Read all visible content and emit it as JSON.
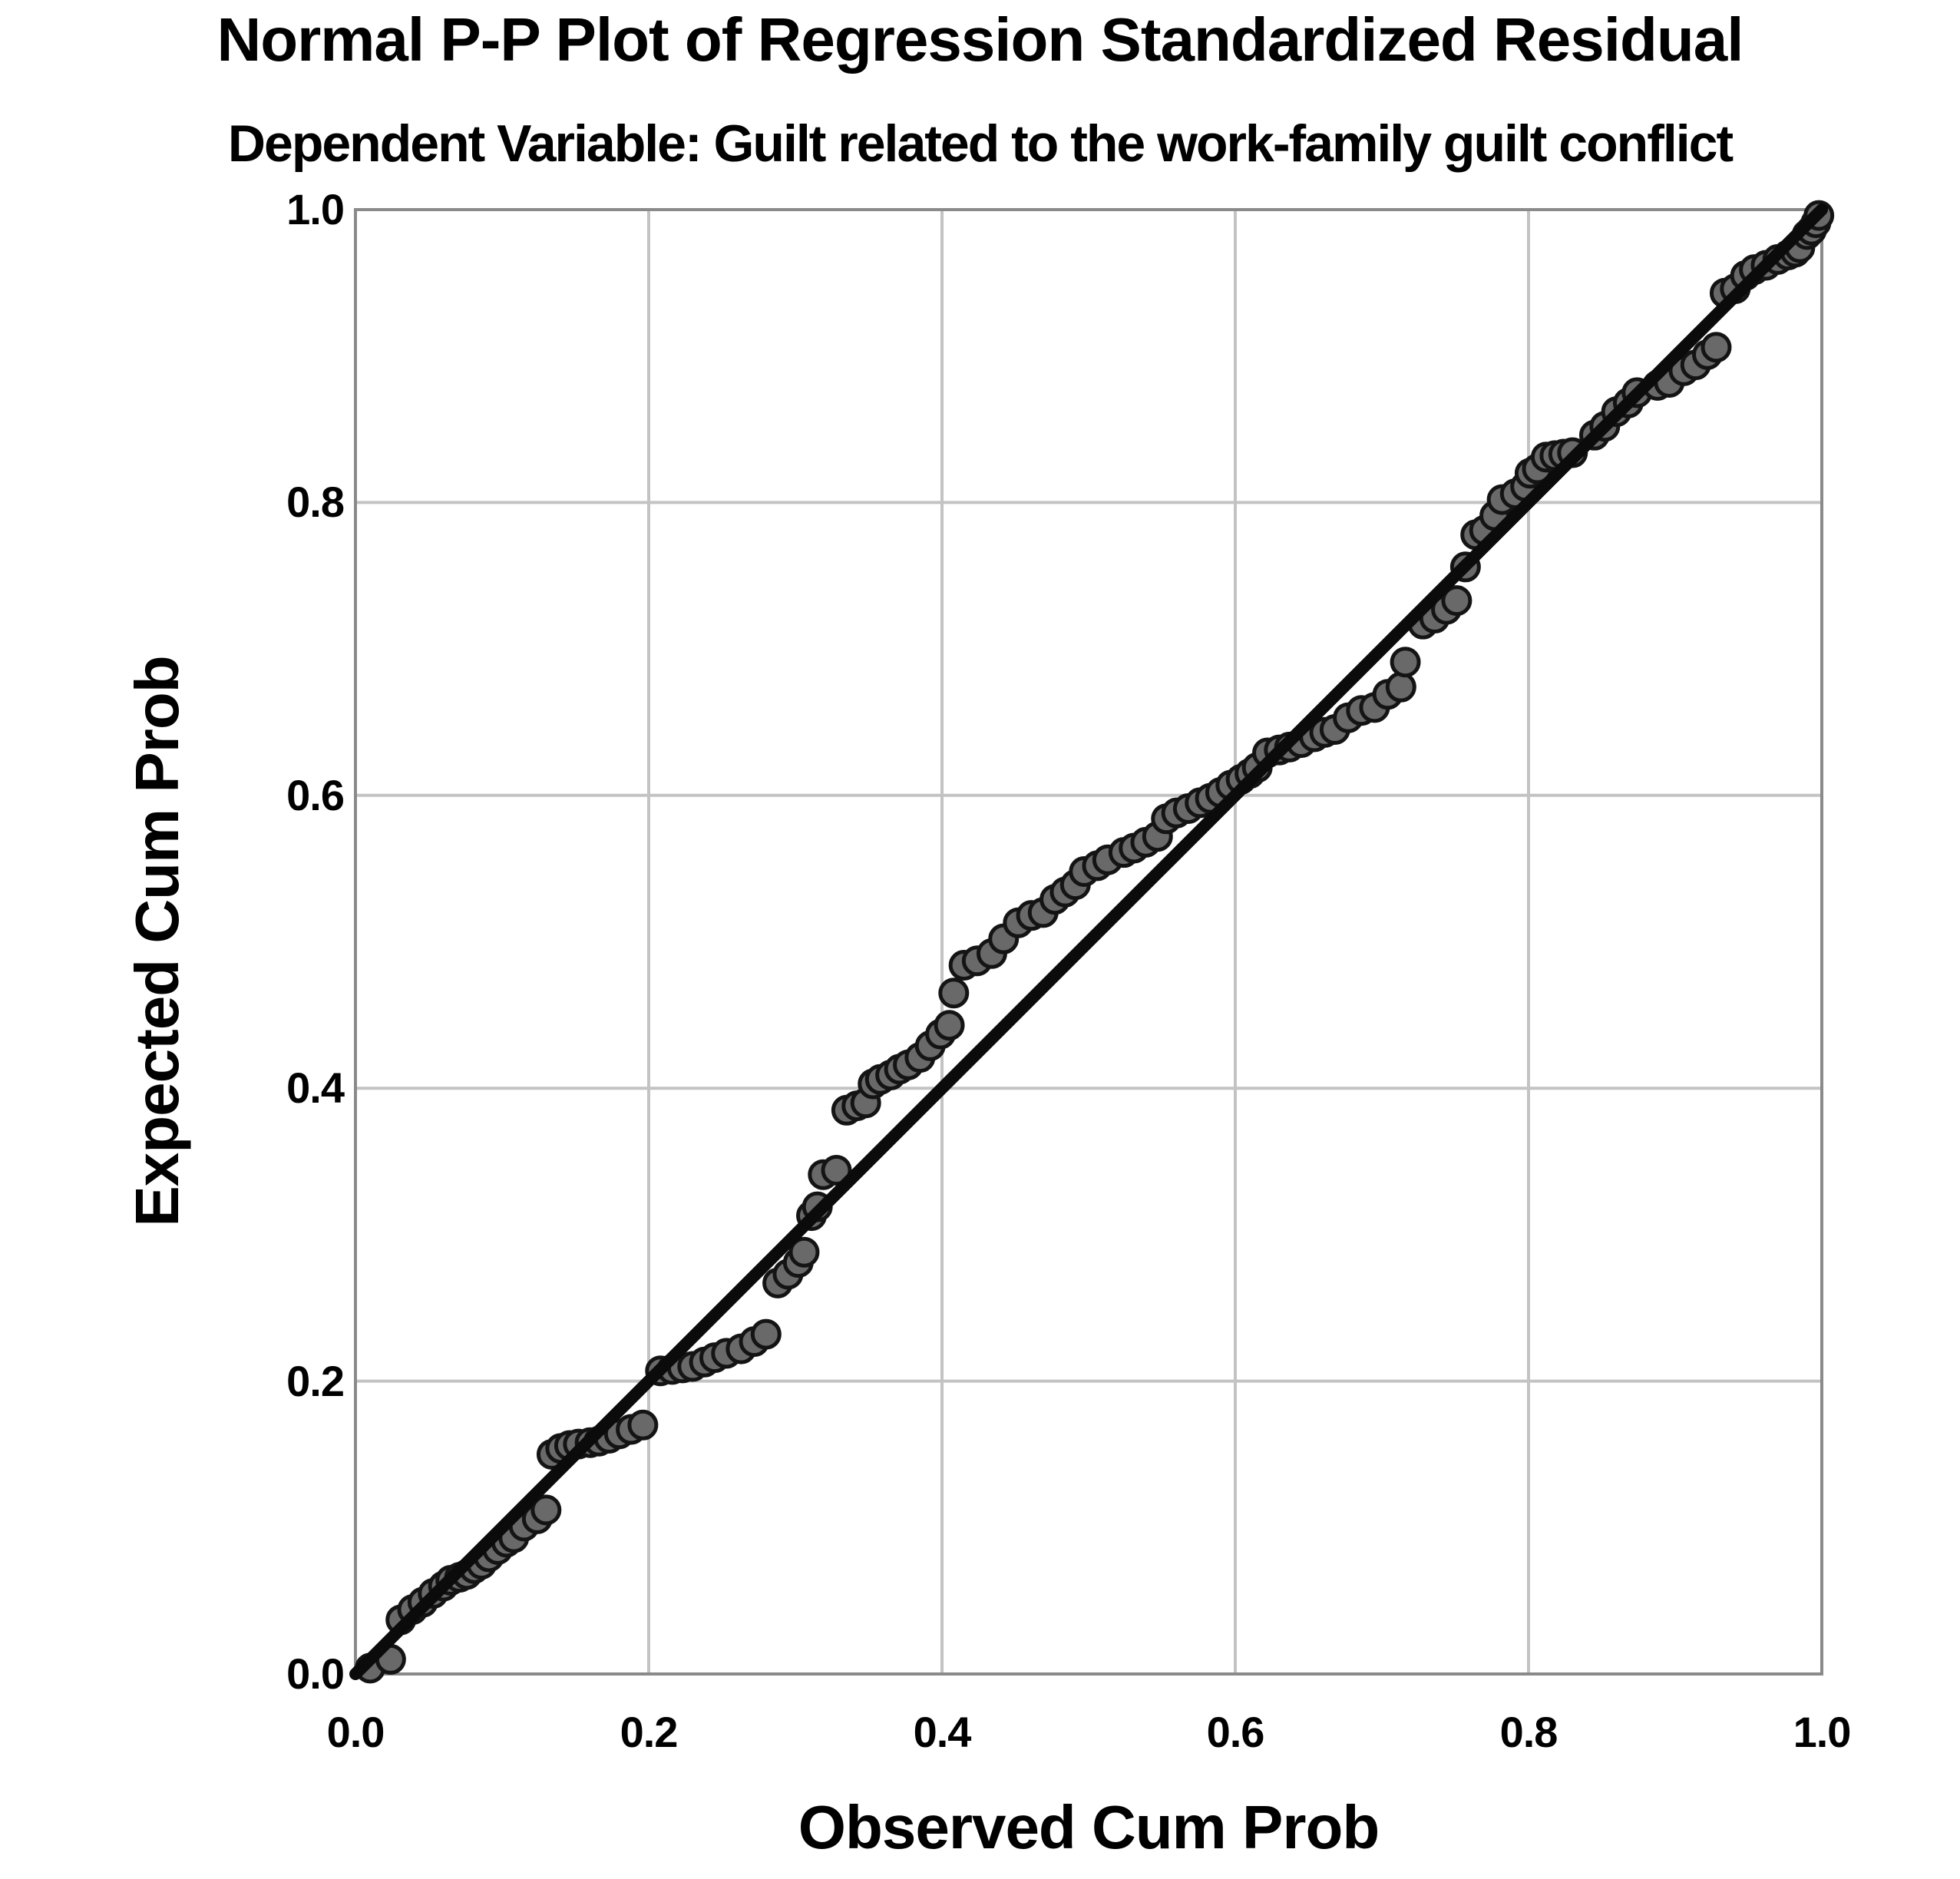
{
  "chart_data": {
    "type": "scatter",
    "title": "Normal P-P Plot of Regression Standardized Residual",
    "subtitle": "Dependent Variable: Guilt related to the work-family guilt conflict",
    "xlabel": "Observed Cum Prob",
    "ylabel": "Expected Cum Prob",
    "xlim": [
      0.0,
      1.0
    ],
    "ylim": [
      0.0,
      1.0
    ],
    "x_ticks": [
      0.0,
      0.2,
      0.4,
      0.6,
      0.8,
      1.0
    ],
    "y_ticks": [
      0.0,
      0.2,
      0.4,
      0.6,
      0.8,
      1.0
    ],
    "x_tick_labels": [
      "0.0",
      "0.2",
      "0.4",
      "0.6",
      "0.8",
      "1.0"
    ],
    "y_tick_labels": [
      "0.0",
      "0.2",
      "0.4",
      "0.6",
      "0.8",
      "1.0"
    ],
    "grid": true,
    "legend": "none",
    "reference_line": {
      "x1": 0.0,
      "y1": 0.0,
      "x2": 1.0,
      "y2": 1.0
    },
    "colors": {
      "background": "#ffffff",
      "text": "#000000",
      "grid": "#c3c3c3",
      "frame": "#8a8a8a",
      "reference_line": "#0b0b0b",
      "point_fill": "#696969",
      "point_stroke": "#141414"
    },
    "series": [
      {
        "name": "Regression Standardized Residual",
        "points": [
          [
            0.01,
            0.004
          ],
          [
            0.024,
            0.01
          ],
          [
            0.031,
            0.037
          ],
          [
            0.039,
            0.044
          ],
          [
            0.046,
            0.049
          ],
          [
            0.053,
            0.055
          ],
          [
            0.06,
            0.06
          ],
          [
            0.065,
            0.064
          ],
          [
            0.071,
            0.066
          ],
          [
            0.076,
            0.068
          ],
          [
            0.081,
            0.072
          ],
          [
            0.086,
            0.075
          ],
          [
            0.091,
            0.08
          ],
          [
            0.097,
            0.085
          ],
          [
            0.103,
            0.09
          ],
          [
            0.108,
            0.093
          ],
          [
            0.115,
            0.101
          ],
          [
            0.124,
            0.106
          ],
          [
            0.13,
            0.112
          ],
          [
            0.134,
            0.15
          ],
          [
            0.14,
            0.154
          ],
          [
            0.146,
            0.156
          ],
          [
            0.152,
            0.157
          ],
          [
            0.16,
            0.158
          ],
          [
            0.166,
            0.159
          ],
          [
            0.173,
            0.161
          ],
          [
            0.18,
            0.164
          ],
          [
            0.188,
            0.167
          ],
          [
            0.196,
            0.17
          ],
          [
            0.208,
            0.207
          ],
          [
            0.216,
            0.208
          ],
          [
            0.223,
            0.209
          ],
          [
            0.23,
            0.21
          ],
          [
            0.238,
            0.213
          ],
          [
            0.245,
            0.216
          ],
          [
            0.253,
            0.219
          ],
          [
            0.263,
            0.222
          ],
          [
            0.272,
            0.227
          ],
          [
            0.28,
            0.232
          ],
          [
            0.288,
            0.267
          ],
          [
            0.295,
            0.273
          ],
          [
            0.302,
            0.281
          ],
          [
            0.306,
            0.288
          ],
          [
            0.311,
            0.313
          ],
          [
            0.315,
            0.319
          ],
          [
            0.319,
            0.341
          ],
          [
            0.328,
            0.344
          ],
          [
            0.335,
            0.385
          ],
          [
            0.342,
            0.388
          ],
          [
            0.348,
            0.39
          ],
          [
            0.353,
            0.403
          ],
          [
            0.358,
            0.406
          ],
          [
            0.365,
            0.409
          ],
          [
            0.371,
            0.413
          ],
          [
            0.377,
            0.416
          ],
          [
            0.385,
            0.421
          ],
          [
            0.392,
            0.429
          ],
          [
            0.399,
            0.437
          ],
          [
            0.405,
            0.443
          ],
          [
            0.408,
            0.465
          ],
          [
            0.415,
            0.484
          ],
          [
            0.424,
            0.487
          ],
          [
            0.434,
            0.492
          ],
          [
            0.442,
            0.502
          ],
          [
            0.452,
            0.513
          ],
          [
            0.461,
            0.518
          ],
          [
            0.469,
            0.52
          ],
          [
            0.477,
            0.529
          ],
          [
            0.484,
            0.534
          ],
          [
            0.491,
            0.539
          ],
          [
            0.497,
            0.548
          ],
          [
            0.506,
            0.552
          ],
          [
            0.513,
            0.556
          ],
          [
            0.524,
            0.561
          ],
          [
            0.531,
            0.564
          ],
          [
            0.539,
            0.568
          ],
          [
            0.547,
            0.572
          ],
          [
            0.553,
            0.584
          ],
          [
            0.56,
            0.588
          ],
          [
            0.568,
            0.591
          ],
          [
            0.576,
            0.595
          ],
          [
            0.583,
            0.598
          ],
          [
            0.59,
            0.602
          ],
          [
            0.597,
            0.607
          ],
          [
            0.604,
            0.611
          ],
          [
            0.61,
            0.615
          ],
          [
            0.615,
            0.619
          ],
          [
            0.622,
            0.629
          ],
          [
            0.63,
            0.631
          ],
          [
            0.637,
            0.633
          ],
          [
            0.645,
            0.636
          ],
          [
            0.654,
            0.64
          ],
          [
            0.661,
            0.643
          ],
          [
            0.668,
            0.645
          ],
          [
            0.677,
            0.653
          ],
          [
            0.686,
            0.658
          ],
          [
            0.695,
            0.66
          ],
          [
            0.704,
            0.669
          ],
          [
            0.713,
            0.674
          ],
          [
            0.716,
            0.691
          ],
          [
            0.728,
            0.717
          ],
          [
            0.736,
            0.721
          ],
          [
            0.744,
            0.727
          ],
          [
            0.751,
            0.733
          ],
          [
            0.757,
            0.756
          ],
          [
            0.764,
            0.778
          ],
          [
            0.77,
            0.781
          ],
          [
            0.777,
            0.791
          ],
          [
            0.782,
            0.802
          ],
          [
            0.791,
            0.806
          ],
          [
            0.798,
            0.811
          ],
          [
            0.801,
            0.82
          ],
          [
            0.806,
            0.823
          ],
          [
            0.812,
            0.831
          ],
          [
            0.818,
            0.832
          ],
          [
            0.824,
            0.833
          ],
          [
            0.83,
            0.834
          ],
          [
            0.845,
            0.846
          ],
          [
            0.852,
            0.852
          ],
          [
            0.86,
            0.862
          ],
          [
            0.868,
            0.868
          ],
          [
            0.874,
            0.875
          ],
          [
            0.888,
            0.88
          ],
          [
            0.896,
            0.882
          ],
          [
            0.906,
            0.89
          ],
          [
            0.914,
            0.894
          ],
          [
            0.922,
            0.901
          ],
          [
            0.928,
            0.906
          ],
          [
            0.934,
            0.943
          ],
          [
            0.941,
            0.946
          ],
          [
            0.948,
            0.955
          ],
          [
            0.954,
            0.959
          ],
          [
            0.962,
            0.962
          ],
          [
            0.97,
            0.966
          ],
          [
            0.977,
            0.969
          ],
          [
            0.982,
            0.971
          ],
          [
            0.985,
            0.974
          ],
          [
            0.99,
            0.983
          ],
          [
            0.993,
            0.986
          ],
          [
            0.996,
            0.991
          ],
          [
            0.998,
            0.996
          ]
        ]
      }
    ]
  }
}
